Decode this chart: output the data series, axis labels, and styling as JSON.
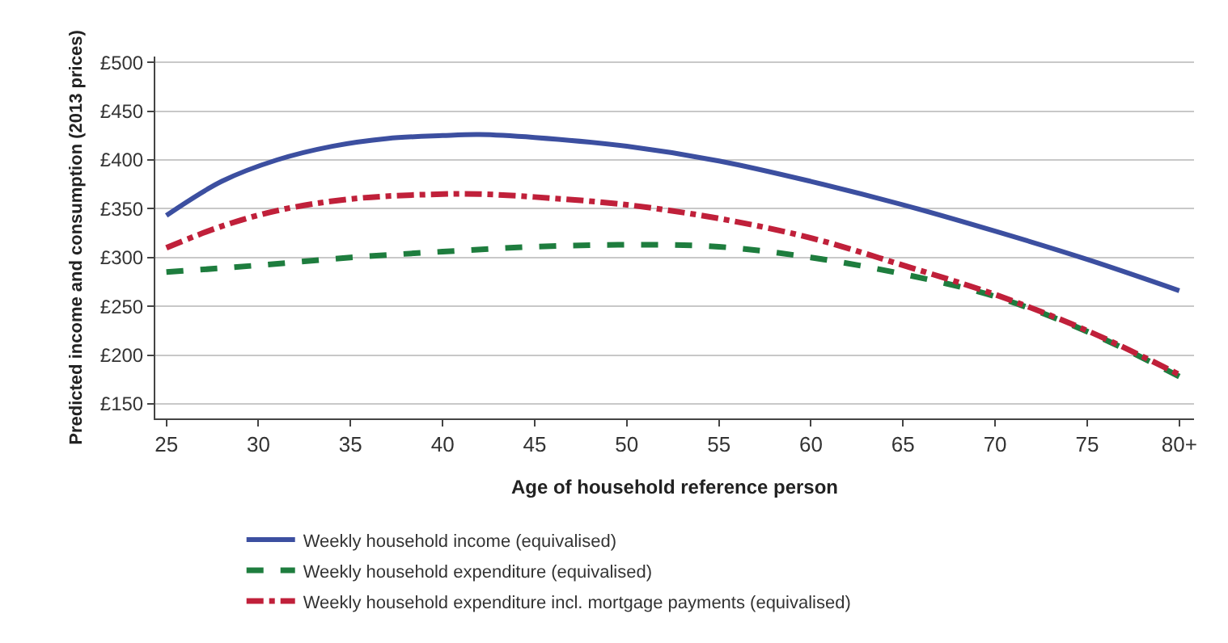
{
  "chart_data": {
    "type": "line",
    "xlabel": "Age of household reference person",
    "ylabel": "Predicted income and consumption (2013 prices)",
    "xlim": [
      24.4,
      80.8
    ],
    "xticks": [
      25,
      30,
      35,
      40,
      45,
      50,
      55,
      60,
      65,
      70,
      75,
      {
        "value": 80,
        "label": "80+"
      }
    ],
    "ylim": [
      135,
      506
    ],
    "yticks": [
      {
        "value": 150,
        "label": "£150"
      },
      {
        "value": 200,
        "label": "£200"
      },
      {
        "value": 250,
        "label": "£250"
      },
      {
        "value": 300,
        "label": "£300"
      },
      {
        "value": 350,
        "label": "£350"
      },
      {
        "value": 400,
        "label": "£400"
      },
      {
        "value": 450,
        "label": "£450"
      },
      {
        "value": 500,
        "label": "£500"
      }
    ],
    "grid": "y",
    "legend": "bottom",
    "marker": "none",
    "series": [
      {
        "name": "Weekly household income (equivalised)",
        "color": "#3c4fa0",
        "line_style": "solid",
        "x": [
          25,
          28,
          31,
          34,
          37,
          40,
          42,
          45,
          50,
          55,
          60,
          65,
          70,
          75,
          80
        ],
        "values": [
          343,
          378,
          400,
          414,
          422,
          425,
          426,
          423,
          414,
          399,
          378,
          354,
          327,
          298,
          266
        ]
      },
      {
        "name": "Weekly household expenditure (equivalised)",
        "color": "#1e7d3e",
        "line_style": "dashed",
        "x": [
          25,
          30,
          35,
          40,
          45,
          50,
          55,
          60,
          65,
          70,
          75,
          80
        ],
        "values": [
          285,
          292,
          300,
          306,
          311,
          313,
          311,
          300,
          283,
          260,
          224,
          178
        ]
      },
      {
        "name": "Weekly household expenditure incl. mortgage payments (equivalised)",
        "color": "#c0203a",
        "line_style": "dashdot",
        "x": [
          25,
          28,
          31,
          35,
          40,
          42,
          45,
          50,
          55,
          60,
          65,
          70,
          75,
          80
        ],
        "values": [
          310,
          332,
          348,
          360,
          365,
          365,
          362,
          354,
          340,
          320,
          292,
          262,
          225,
          180
        ]
      }
    ]
  }
}
